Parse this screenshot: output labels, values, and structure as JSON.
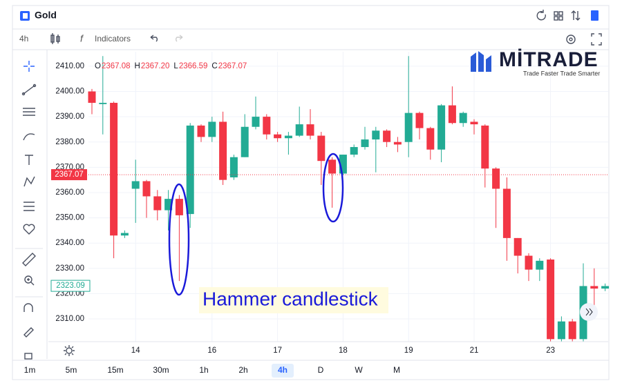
{
  "header": {
    "title": "Gold"
  },
  "toolbar": {
    "interval": "4h",
    "indicators": "Indicators"
  },
  "brand": {
    "name": "MİTRADE",
    "tagline": "Trade Faster Trade Smarter"
  },
  "legend": [
    {
      "key": "O",
      "text": "2367.08"
    },
    {
      "key": "H",
      "text": "2367.20"
    },
    {
      "key": "L",
      "text": "2366.59"
    },
    {
      "key": "C",
      "text": "2367.07"
    }
  ],
  "timeframes": {
    "items": [
      "1m",
      "5m",
      "15m",
      "30m",
      "1h",
      "2h",
      "4h",
      "D",
      "W",
      "M"
    ],
    "selected": "4h"
  },
  "chart_data": {
    "type": "candlestick",
    "annotation": "Hammer candlestick",
    "categories": [
      null,
      null,
      null,
      null,
      "14",
      null,
      null,
      null,
      null,
      null,
      null,
      "16",
      null,
      null,
      null,
      null,
      null,
      "17",
      null,
      null,
      null,
      null,
      null,
      "18",
      null,
      null,
      null,
      null,
      null,
      "19",
      null,
      null,
      null,
      null,
      null,
      "21",
      null,
      null,
      null,
      null,
      null,
      null,
      "23",
      null,
      null,
      null,
      null,
      null
    ],
    "open": [
      2400,
      2395,
      2395.5,
      2343,
      2361.5,
      2364.5,
      2358.5,
      2353,
      2357.5,
      2351.5,
      2386.5,
      2382,
      2388,
      2366,
      2374,
      2386,
      2390,
      2383,
      2381.5,
      2382.5,
      2387,
      2382.5,
      2373,
      2367.5,
      2375,
      2378,
      2381,
      2384.5,
      2380,
      2380,
      2391.5,
      2385.5,
      2377,
      2394.5,
      2387.5,
      2388,
      2386.5,
      2369.5,
      2361.5,
      2342,
      2335,
      2329.5,
      2333.5,
      2302,
      2309,
      2302,
      2323,
      2322
    ],
    "high": [
      2401,
      2414,
      2396,
      2345,
      2373,
      2365,
      2361,
      2361,
      2359,
      2387.5,
      2387,
      2390,
      2392,
      2375,
      2391,
      2398,
      2391,
      2384,
      2384,
      2394,
      2393,
      2384,
      2374,
      2375,
      2379,
      2386,
      2386,
      2385,
      2382,
      2414,
      2392,
      2386,
      2395,
      2402,
      2392,
      2389,
      2387,
      2370,
      2366,
      2342,
      2336,
      2334,
      2334,
      2311,
      2310,
      2332,
      2330,
      2324
    ],
    "low": [
      2391,
      2383,
      2334,
      2342,
      2348,
      2350,
      2349,
      2345,
      2325,
      2346,
      2380,
      2380,
      2363,
      2365,
      2374,
      2385,
      2381,
      2380,
      2375,
      2382,
      2381,
      2363,
      2354,
      2367,
      2374,
      2377,
      2368,
      2378,
      2376,
      2374,
      2381,
      2373,
      2372,
      2387,
      2386,
      2383,
      2362,
      2346,
      2333,
      2328,
      2325,
      2325,
      2301,
      2301,
      2301,
      2301,
      2315,
      2321
    ],
    "close": [
      2395.5,
      2395.5,
      2343,
      2344,
      2364.5,
      2358.5,
      2353,
      2357.5,
      2351,
      2386.5,
      2382,
      2388,
      2365,
      2374,
      2386,
      2390,
      2383,
      2381.5,
      2382.5,
      2387,
      2382.5,
      2372.5,
      2367.5,
      2375,
      2378,
      2381,
      2384.5,
      2380,
      2379,
      2391.5,
      2385.5,
      2377,
      2394.5,
      2387.5,
      2391.5,
      2387,
      2369.5,
      2361.5,
      2342,
      2335,
      2329.5,
      2333,
      2302,
      2309,
      2302,
      2323,
      2322,
      2323
    ],
    "up_color": "#22ab94",
    "down_color": "#f23645",
    "last_price": 2367.07,
    "crosshair_price": 2323.09,
    "ylim": [
      2301,
      2415.7
    ],
    "yticks": [
      {
        "value": 2310,
        "label": "2310.00"
      },
      {
        "value": 2320,
        "label": "2320.00"
      },
      {
        "value": 2330,
        "label": "2330.00"
      },
      {
        "value": 2340,
        "label": "2340.00"
      },
      {
        "value": 2350,
        "label": "2350.00"
      },
      {
        "value": 2360,
        "label": "2360.00"
      },
      {
        "value": 2370,
        "label": "2370.00"
      },
      {
        "value": 2380,
        "label": "2380.00"
      },
      {
        "value": 2390,
        "label": "2390.00"
      },
      {
        "value": 2400,
        "label": "2400.00"
      },
      {
        "value": 2410,
        "label": "2410.00"
      }
    ],
    "grid": true
  }
}
